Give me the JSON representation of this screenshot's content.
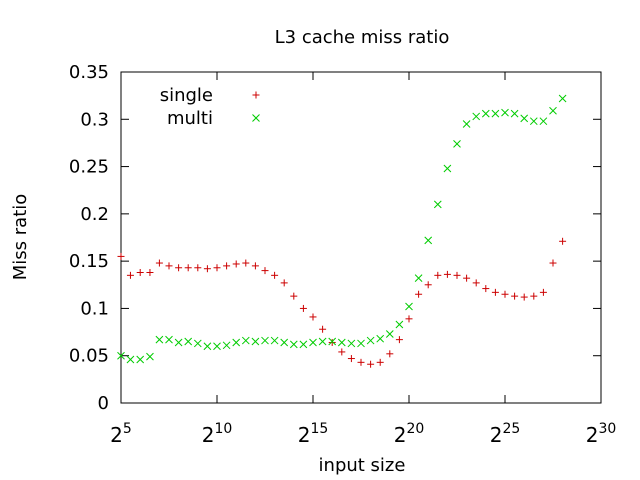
{
  "chart_data": {
    "type": "scatter",
    "title": "L3 cache miss ratio",
    "xlabel": "input size",
    "ylabel": "Miss ratio",
    "x_scale": "log2",
    "xlim": [
      32,
      1073741824
    ],
    "ylim": [
      0,
      0.35
    ],
    "grid": false,
    "legend_position": "top-left",
    "x_ticks": [
      {
        "value": 32,
        "base": "2",
        "exp": "5"
      },
      {
        "value": 1024,
        "base": "2",
        "exp": "10"
      },
      {
        "value": 32768,
        "base": "2",
        "exp": "15"
      },
      {
        "value": 1048576,
        "base": "2",
        "exp": "20"
      },
      {
        "value": 33554432,
        "base": "2",
        "exp": "25"
      },
      {
        "value": 1073741824,
        "base": "2",
        "exp": "30"
      }
    ],
    "y_ticks": [
      {
        "value": 0,
        "label": "0"
      },
      {
        "value": 0.05,
        "label": "0.05"
      },
      {
        "value": 0.1,
        "label": "0.1"
      },
      {
        "value": 0.15,
        "label": "0.15"
      },
      {
        "value": 0.2,
        "label": "0.2"
      },
      {
        "value": 0.25,
        "label": "0.25"
      },
      {
        "value": 0.3,
        "label": "0.3"
      },
      {
        "value": 0.35,
        "label": "0.35"
      }
    ],
    "series": [
      {
        "name": "single",
        "color": "#cc0000",
        "marker": "plus",
        "x": [
          32,
          45,
          64,
          91,
          128,
          181,
          256,
          362,
          512,
          724,
          1024,
          1448,
          2048,
          2896,
          4096,
          5793,
          8192,
          11585,
          16384,
          23170,
          32768,
          46341,
          65536,
          92682,
          131072,
          185364,
          262144,
          370728,
          524288,
          741455,
          1048576,
          1482910,
          2097152,
          2965821,
          4194304,
          5931642,
          8388608,
          11863283,
          16777216,
          23726566,
          33554432,
          47453133,
          67108864,
          94906266,
          134217728,
          189812531,
          268435456
        ],
        "y": [
          0.155,
          0.135,
          0.138,
          0.138,
          0.148,
          0.145,
          0.143,
          0.143,
          0.143,
          0.142,
          0.143,
          0.145,
          0.147,
          0.148,
          0.145,
          0.14,
          0.135,
          0.127,
          0.113,
          0.1,
          0.091,
          0.078,
          0.064,
          0.054,
          0.047,
          0.043,
          0.041,
          0.043,
          0.052,
          0.067,
          0.089,
          0.115,
          0.125,
          0.135,
          0.136,
          0.135,
          0.132,
          0.127,
          0.121,
          0.117,
          0.115,
          0.113,
          0.112,
          0.113,
          0.117,
          0.148,
          0.171
        ]
      },
      {
        "name": "multi",
        "color": "#00cc00",
        "marker": "cross",
        "x": [
          32,
          45,
          64,
          91,
          128,
          181,
          256,
          362,
          512,
          724,
          1024,
          1448,
          2048,
          2896,
          4096,
          5793,
          8192,
          11585,
          16384,
          23170,
          32768,
          46341,
          65536,
          92682,
          131072,
          185364,
          262144,
          370728,
          524288,
          741455,
          1048576,
          1482910,
          2097152,
          2965821,
          4194304,
          5931642,
          8388608,
          11863283,
          16777216,
          23726566,
          33554432,
          47453133,
          67108864,
          94906266,
          134217728,
          189812531,
          268435456
        ],
        "y": [
          0.05,
          0.046,
          0.046,
          0.049,
          0.067,
          0.067,
          0.064,
          0.065,
          0.063,
          0.06,
          0.06,
          0.061,
          0.064,
          0.066,
          0.065,
          0.066,
          0.066,
          0.064,
          0.062,
          0.062,
          0.064,
          0.065,
          0.065,
          0.064,
          0.063,
          0.063,
          0.066,
          0.068,
          0.073,
          0.083,
          0.102,
          0.132,
          0.172,
          0.21,
          0.248,
          0.274,
          0.295,
          0.303,
          0.306,
          0.306,
          0.307,
          0.306,
          0.301,
          0.298,
          0.298,
          0.309,
          0.322
        ]
      }
    ]
  }
}
